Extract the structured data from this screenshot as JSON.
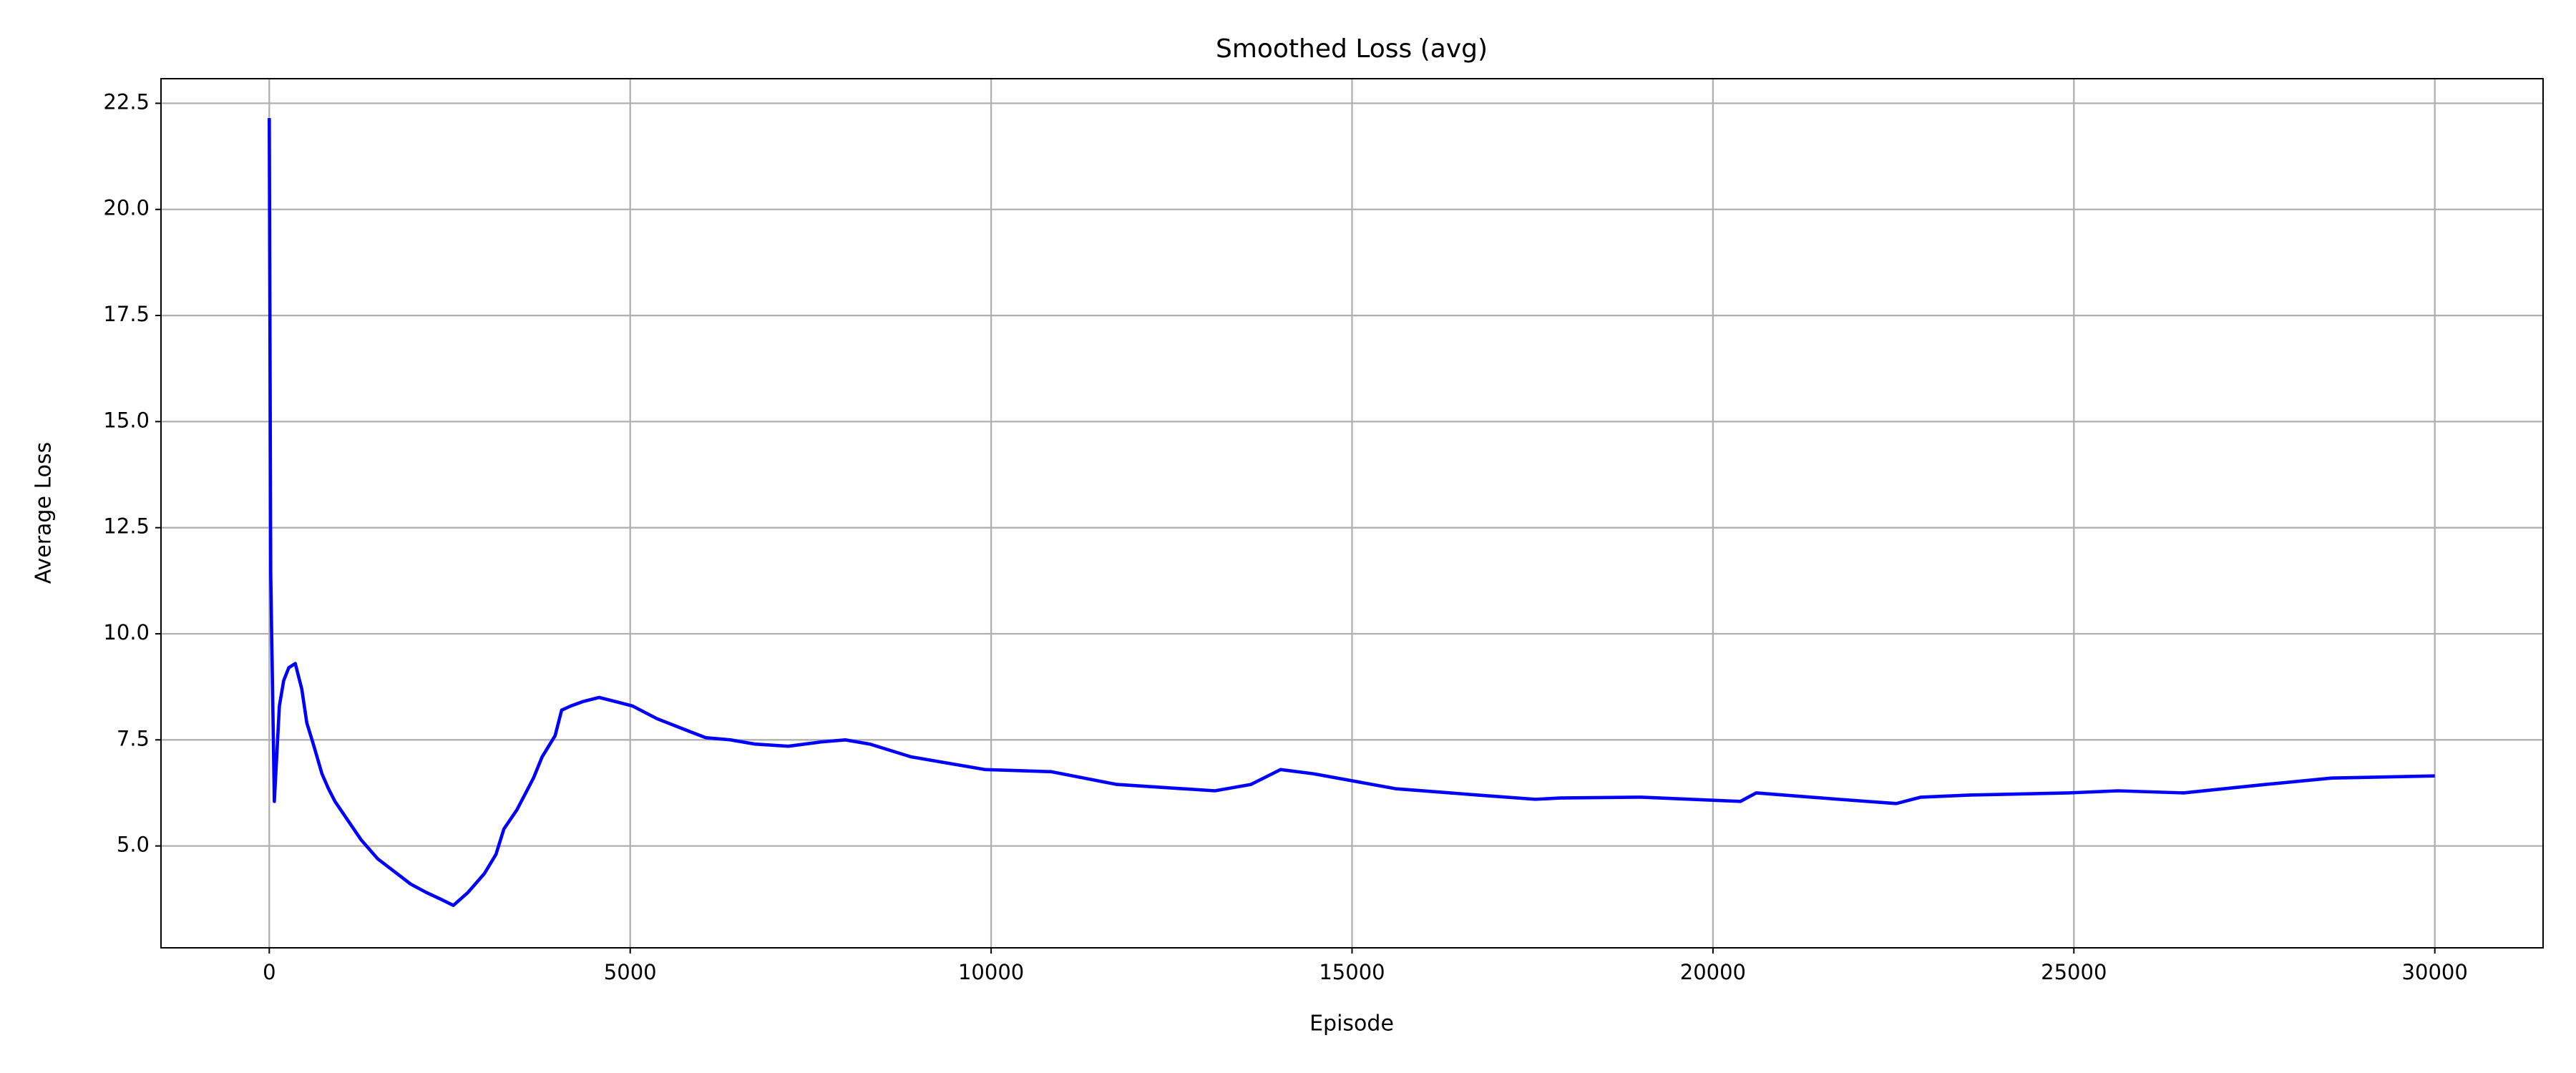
{
  "chart_data": {
    "type": "line",
    "title": "Smoothed Loss (avg)",
    "x_label": "Episode",
    "y_label": "Average Loss",
    "grid": true,
    "xlim": [
      -1500,
      31500
    ],
    "xticks": [
      0,
      5000,
      10000,
      15000,
      20000,
      25000,
      30000
    ],
    "ylim": [
      2.6,
      23.08
    ],
    "yticks": [
      {
        "value": 5,
        "label": "5.0"
      },
      7.5,
      {
        "value": 10,
        "label": "10.0"
      },
      12.5,
      {
        "value": 15,
        "label": "15.0"
      },
      17.5,
      {
        "value": 20,
        "label": "20.0"
      },
      22.5
    ],
    "x": [
      0,
      20,
      70,
      140,
      200,
      270,
      360,
      450,
      520,
      610,
      730,
      820,
      910,
      1050,
      1270,
      1500,
      1730,
      1960,
      2180,
      2370,
      2550,
      2750,
      2980,
      3140,
      3250,
      3430,
      3660,
      3780,
      3960,
      4050,
      4180,
      4340,
      4570,
      4800,
      5030,
      5370,
      5820,
      6050,
      6390,
      6730,
      7190,
      7640,
      7980,
      8320,
      8890,
      9920,
      10830,
      11740,
      12190,
      13100,
      13600,
      14010,
      14470,
      15600,
      16740,
      17540,
      17880,
      19010,
      20380,
      20600,
      21740,
      22540,
      22880,
      23560,
      24930,
      25610,
      26520,
      27660,
      28570,
      30000
    ],
    "series": [
      {
        "name": "Smoothed Loss",
        "color": "#0000ff",
        "values": [
          22.15,
          11.4,
          6.05,
          8.3,
          8.9,
          9.2,
          9.3,
          8.7,
          7.9,
          7.4,
          6.7,
          6.35,
          6.05,
          5.7,
          5.15,
          4.7,
          4.4,
          4.1,
          3.9,
          3.75,
          3.6,
          3.9,
          4.35,
          4.8,
          5.4,
          5.85,
          6.6,
          7.1,
          7.6,
          8.2,
          8.3,
          8.4,
          8.5,
          8.4,
          8.3,
          8.0,
          7.7,
          7.55,
          7.5,
          7.4,
          7.35,
          7.45,
          7.5,
          7.4,
          7.1,
          6.8,
          6.75,
          6.45,
          6.4,
          6.3,
          6.45,
          6.8,
          6.7,
          6.35,
          6.2,
          6.1,
          6.13,
          6.15,
          6.05,
          6.25,
          6.1,
          6.0,
          6.15,
          6.2,
          6.25,
          6.3,
          6.25,
          6.45,
          6.6,
          6.65
        ]
      }
    ]
  }
}
